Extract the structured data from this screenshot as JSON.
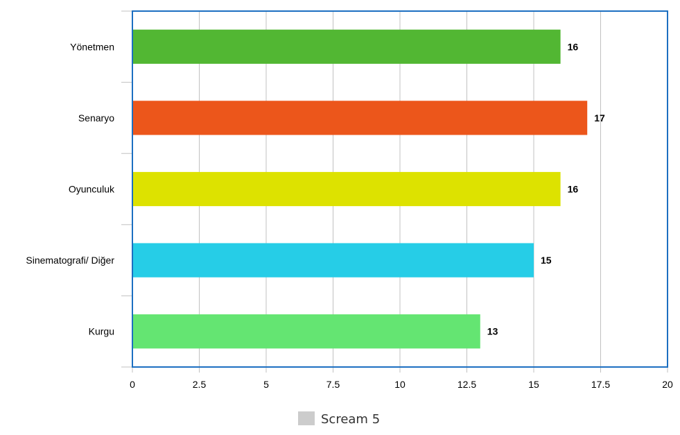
{
  "chart_data": {
    "type": "bar",
    "orientation": "horizontal",
    "categories": [
      "Yönetmen",
      "Senaryo",
      "Oyunculuk",
      "Sinematografi/ Diğer",
      "Kurgu"
    ],
    "series": [
      {
        "name": "Scream 5",
        "values": [
          16,
          17,
          16,
          15,
          13
        ],
        "colors": [
          "#52b733",
          "#ec561b",
          "#dde200",
          "#26cde7",
          "#64e572"
        ],
        "legend_color": "#cccccc"
      }
    ],
    "data_labels": [
      "16",
      "17",
      "16",
      "15",
      "13"
    ],
    "xlim": [
      0,
      20
    ],
    "x_ticks": [
      0,
      2.5,
      5,
      7.5,
      10,
      12.5,
      15,
      17.5,
      20
    ],
    "x_tick_labels": [
      "0",
      "2.5",
      "5",
      "7.5",
      "10",
      "12.5",
      "15",
      "17.5",
      "20"
    ],
    "grid": true,
    "legend_position": "bottom-center",
    "title": "",
    "xlabel": "",
    "ylabel": ""
  }
}
